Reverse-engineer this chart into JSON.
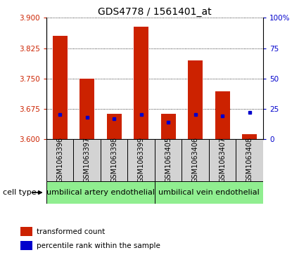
{
  "title": "GDS4778 / 1561401_at",
  "samples": [
    "GSM1063396",
    "GSM1063397",
    "GSM1063398",
    "GSM1063399",
    "GSM1063405",
    "GSM1063406",
    "GSM1063407",
    "GSM1063408"
  ],
  "red_values": [
    3.856,
    3.75,
    3.663,
    3.878,
    3.662,
    3.795,
    3.718,
    3.612
  ],
  "blue_values": [
    20,
    18,
    17,
    20,
    14,
    20,
    19,
    22
  ],
  "ymin": 3.6,
  "ymax": 3.9,
  "y_ticks": [
    3.6,
    3.675,
    3.75,
    3.825,
    3.9
  ],
  "right_yticks": [
    0,
    25,
    50,
    75,
    100
  ],
  "right_ytick_labels": [
    "0",
    "25",
    "50",
    "75",
    "100%"
  ],
  "group1_label": "umbilical artery endothelial",
  "group2_label": "umbilical vein endothelial",
  "cell_type_label": "cell type",
  "legend_red": "transformed count",
  "legend_blue": "percentile rank within the sample",
  "bar_width": 0.55,
  "red_color": "#cc2200",
  "blue_color": "#0000cc",
  "group_bg_color": "#90ee90",
  "sample_bg_color": "#d3d3d3",
  "title_fontsize": 10,
  "tick_fontsize": 7.5,
  "label_fontsize": 7,
  "group_fontsize": 8
}
